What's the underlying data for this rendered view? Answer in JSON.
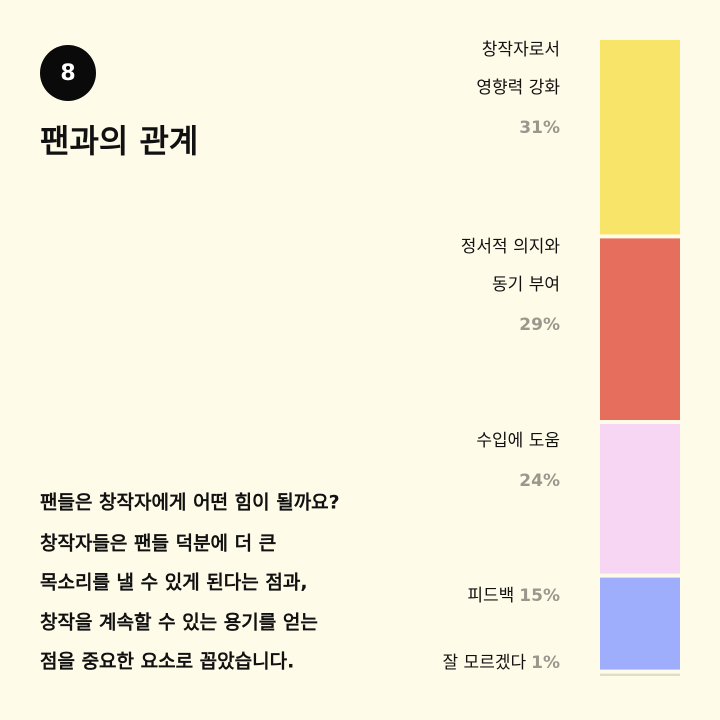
{
  "badge": "8",
  "title": "팬과의 관계",
  "body": [
    "팬들은 창작자에게 어떤 힘이 될까요?",
    "창작자들은 팬들 덕분에 더 큰",
    "목소리를 낼 수 있게 된다는 점과,",
    "창작을 계속할 수 있는 용기를 얻는",
    "점을 중요한 요소로 꼽았습니다."
  ],
  "chart_data": {
    "type": "stacked-column",
    "categories": [
      [
        "창작자로서",
        "영향력 강화"
      ],
      [
        "정서적 의지와",
        "동기 부여"
      ],
      [
        "수입에 도움"
      ],
      [
        "피드백"
      ],
      [
        "잘 모르겠다"
      ]
    ],
    "values": [
      31,
      29,
      24,
      15,
      1
    ],
    "value_labels": [
      "31%",
      "29%",
      "24%",
      "15%",
      "1%"
    ],
    "colors": [
      "#f9e46a",
      "#e56e5c",
      "#f6d6f2",
      "#9eaefc",
      "#e2dfc6"
    ]
  }
}
